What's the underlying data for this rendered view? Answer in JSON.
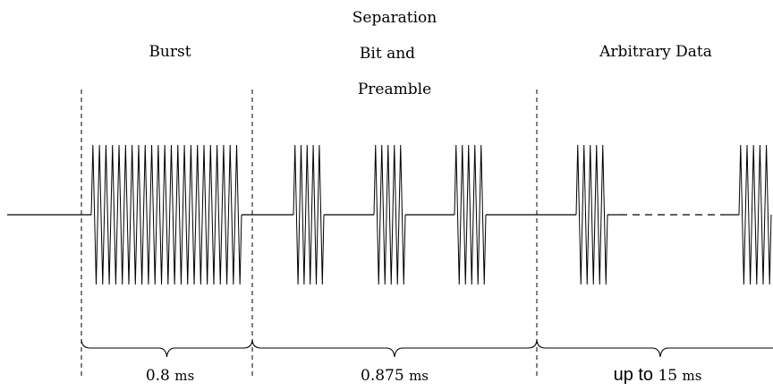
{
  "labels": {
    "burst": "Burst",
    "separation_line1": "Separation",
    "separation_line2": "Bit and",
    "separation_line3": "Preamble",
    "arbitrary": "Arbitrary Data"
  },
  "durations": {
    "burst_value": "0.8",
    "burst_unit": "ms",
    "separation_value": "0.875",
    "separation_unit": "ms",
    "arbitrary_prefix": "up to",
    "arbitrary_value": "15",
    "arbitrary_unit": "ms"
  },
  "colors": {
    "stroke": "#000000",
    "background": "#ffffff"
  }
}
